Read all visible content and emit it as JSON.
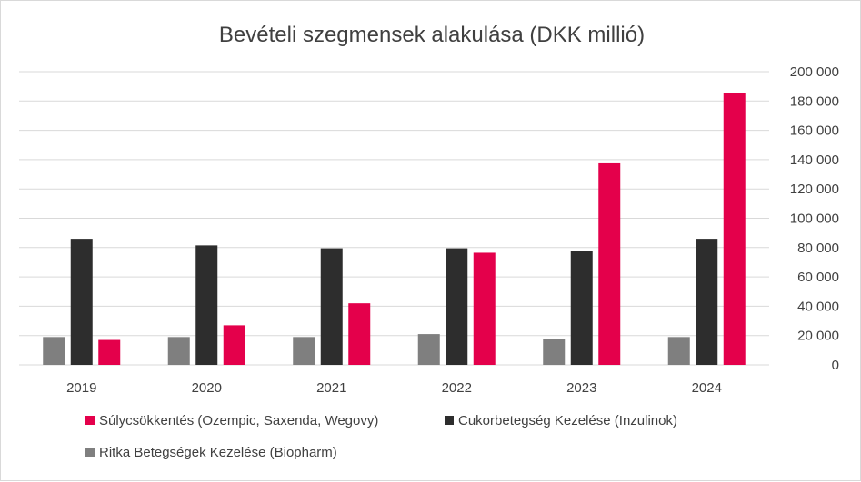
{
  "chart_data": {
    "type": "bar",
    "title": "Bevételi szegmensek alakulása (DKK millió)",
    "xlabel": "",
    "ylabel": "",
    "categories": [
      "2019",
      "2020",
      "2021",
      "2022",
      "2023",
      "2024"
    ],
    "series": [
      {
        "name": "Ritka Betegségek Kezelése (Biopharm)",
        "color": "#7f7f7f",
        "values": [
          19000,
          19000,
          19000,
          21000,
          17500,
          19000
        ]
      },
      {
        "name": "Cukorbetegség Kezelése (Inzulinok)",
        "color": "#2d2d2d",
        "values": [
          86000,
          81500,
          79500,
          79500,
          78000,
          86000
        ]
      },
      {
        "name": "Súlycsökkentés (Ozempic, Saxenda, Wegovy)",
        "color": "#e4004b",
        "values": [
          17000,
          27000,
          42000,
          76500,
          137500,
          185500
        ]
      }
    ],
    "ylim": [
      0,
      200000
    ],
    "yticks": [
      "0",
      "20 000",
      "40 000",
      "60 000",
      "80 000",
      "100 000",
      "120 000",
      "140 000",
      "160 000",
      "180 000",
      "200 000"
    ],
    "y_axis_side": "right",
    "grid": true,
    "legend_position": "bottom",
    "legend_order": [
      2,
      1,
      0
    ]
  }
}
